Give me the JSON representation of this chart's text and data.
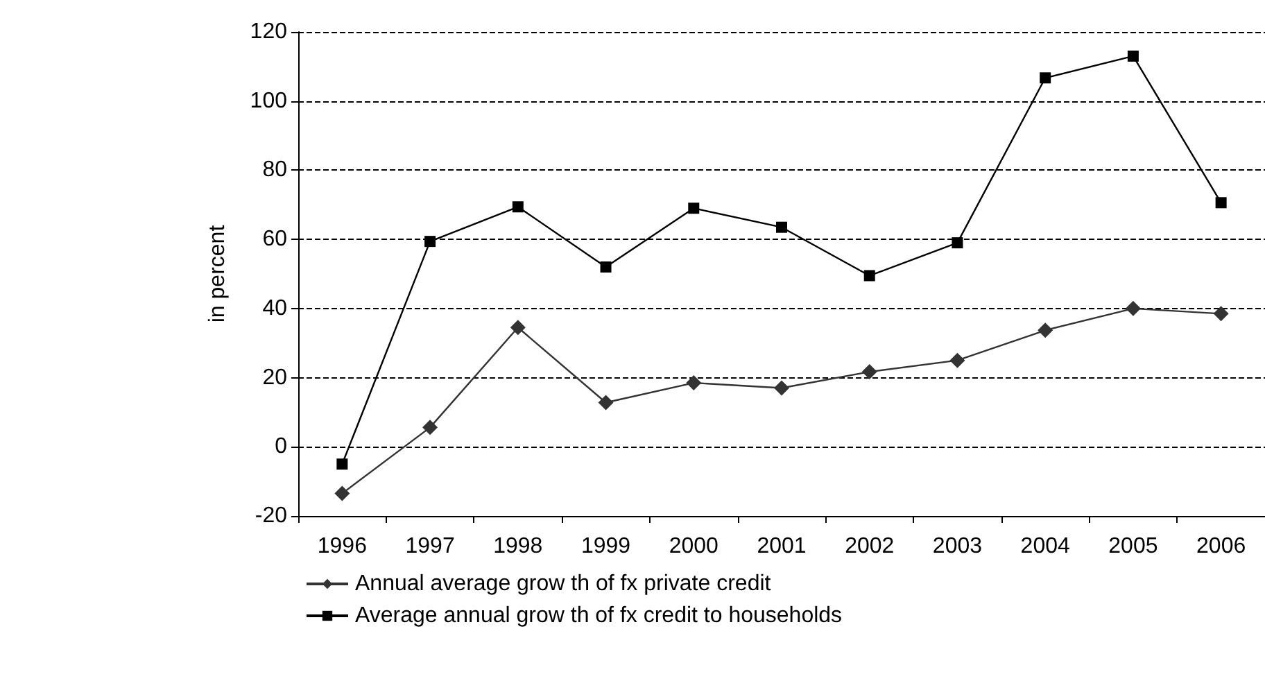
{
  "chart_data": {
    "type": "line",
    "ylabel": "in percent",
    "categories": [
      "1996",
      "1997",
      "1998",
      "1999",
      "2000",
      "2001",
      "2002",
      "2003",
      "2004",
      "2005",
      "2006"
    ],
    "series": [
      {
        "name": "Annual average grow th of fx private credit",
        "color": "#333333",
        "marker": "diamond",
        "values": [
          -13.5,
          5.6,
          34.5,
          12.8,
          18.5,
          17,
          21.7,
          25,
          33.7,
          40,
          38.5
        ]
      },
      {
        "name": "Average annual grow th of fx credit to households",
        "color": "#000000",
        "marker": "square",
        "values": [
          -5,
          59.4,
          69.4,
          52,
          69,
          63.5,
          49.5,
          59,
          106.7,
          113,
          70.6
        ]
      }
    ],
    "ylim": [
      -20,
      120
    ],
    "yticks": [
      -20,
      0,
      20,
      40,
      60,
      80,
      100,
      120
    ],
    "grid": "y",
    "line_style": "solid",
    "legend": "bottom left"
  }
}
